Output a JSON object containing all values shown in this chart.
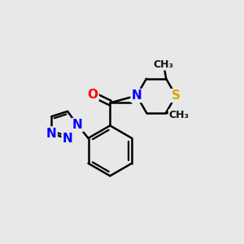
{
  "background_color": "#e8e8e8",
  "bond_color": "#000000",
  "bond_width": 1.8,
  "atom_colors": {
    "N": "#0000ff",
    "O": "#ff0000",
    "S": "#ccaa00"
  },
  "font_size_atom": 11,
  "font_size_methyl": 9,
  "fig_size": [
    3.0,
    3.0
  ],
  "dpi": 100
}
